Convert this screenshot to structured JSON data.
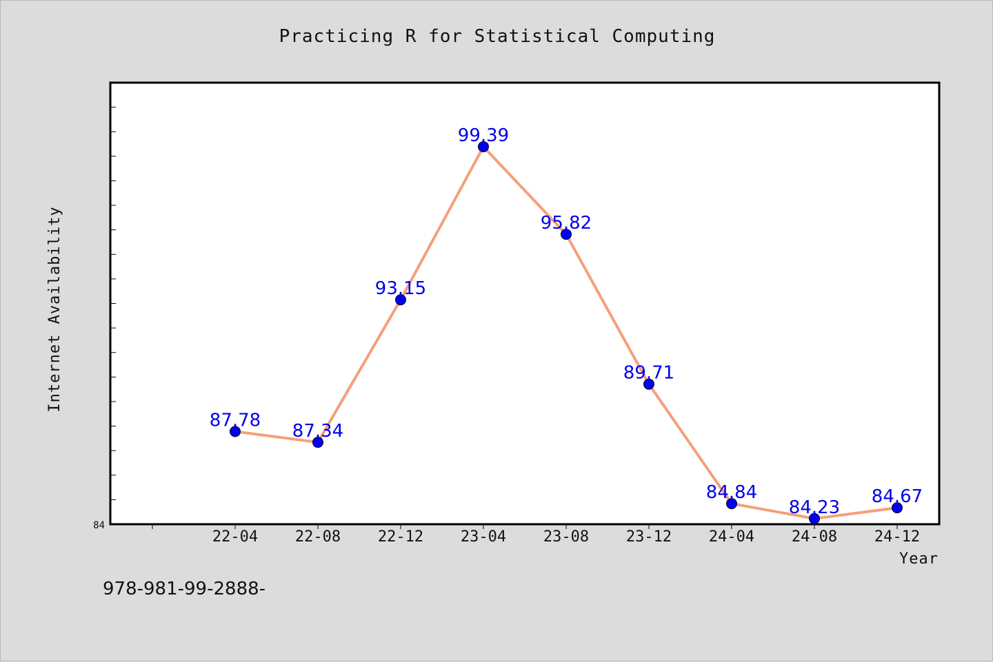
{
  "chart_data": {
    "type": "line",
    "title": "Practicing R for Statistical Computing",
    "xlabel": "Year",
    "ylabel": "Internet Availability",
    "categories": [
      "22-04",
      "22-08",
      "22-12",
      "23-04",
      "23-08",
      "23-12",
      "24-04",
      "24-08",
      "24-12"
    ],
    "series": [
      {
        "values": [
          87.78,
          87.34,
          93.15,
          99.39,
          95.82,
          89.71,
          84.84,
          84.23,
          84.67
        ]
      }
    ],
    "data_labels": [
      "87.78",
      "87.34",
      "93.15",
      "99.39",
      "95.82",
      "89.71",
      "84.84",
      "84.23",
      "84.67"
    ],
    "ylim": [
      84,
      102
    ],
    "ytick_labels": [
      "84"
    ],
    "grid": false,
    "line_color": "#f4a07a",
    "marker_color": "#0000ee",
    "label_color": "#0000ee"
  },
  "footer_text": "978-981-99-2888-"
}
